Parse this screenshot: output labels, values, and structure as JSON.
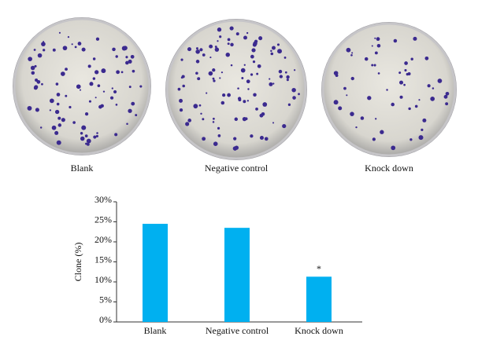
{
  "plates": [
    "Blank",
    "Negative control",
    "Knock down"
  ],
  "chart_data": {
    "type": "bar",
    "ylabel": "Clone (%)",
    "categories": [
      "Blank",
      "Negative control",
      "Knock down"
    ],
    "values": [
      24.5,
      23.5,
      11.3
    ],
    "color": "#00b0f0",
    "annotation": "*",
    "ylim": [
      0,
      30
    ],
    "yticks": [
      {
        "value": 0,
        "label": "0%"
      },
      {
        "value": 5,
        "label": "5%"
      },
      {
        "value": 10,
        "label": "10%"
      },
      {
        "value": 15,
        "label": "15%"
      },
      {
        "value": 20,
        "label": "20%"
      },
      {
        "value": 25,
        "label": "25%"
      },
      {
        "value": 30,
        "label": "30%"
      }
    ],
    "grid": false
  }
}
